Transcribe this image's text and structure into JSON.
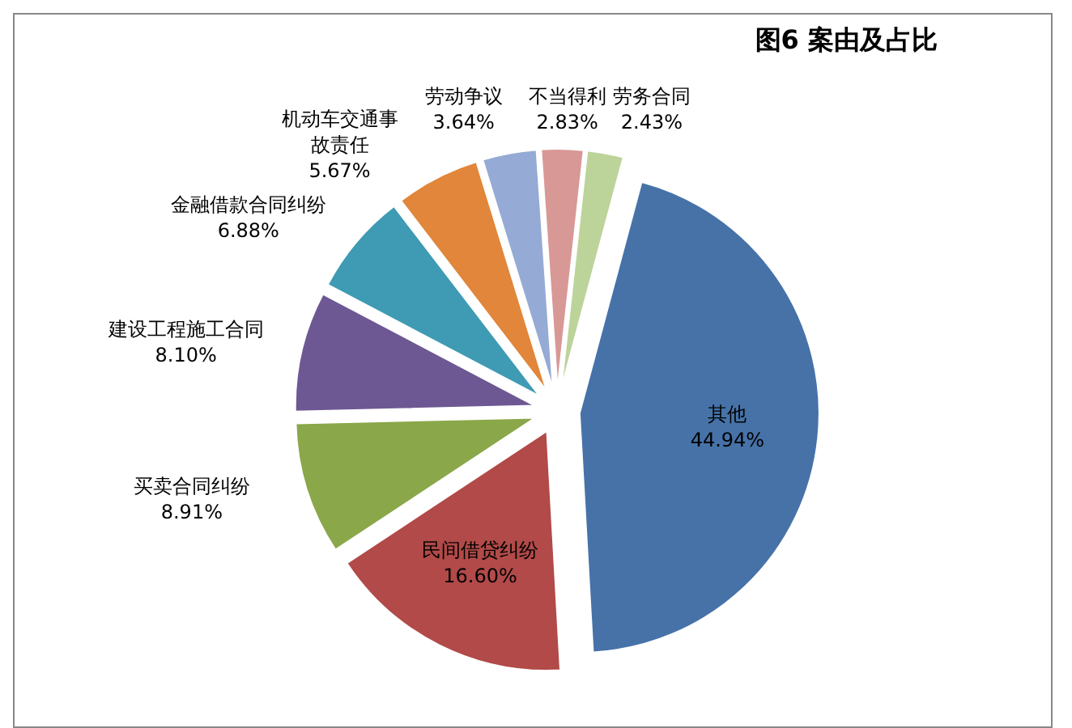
{
  "chart_data": {
    "type": "pie",
    "title": "图6 案由及占比",
    "categories": [
      "其他",
      "民间借贷纠纷",
      "买卖合同纠纷",
      "建设工程施工合同",
      "金融借款合同纠纷",
      "机动车交通事故责任",
      "劳动争议",
      "不当得利",
      "劳务合同"
    ],
    "values": [
      44.94,
      16.6,
      8.91,
      8.1,
      6.88,
      5.67,
      3.64,
      2.83,
      2.43
    ],
    "value_labels": [
      "44.94%",
      "16.60%",
      "8.91%",
      "8.10%",
      "6.88%",
      "5.67%",
      "3.64%",
      "2.83%",
      "2.43%"
    ],
    "colors": [
      "#4672a8",
      "#b14a48",
      "#8aa74a",
      "#6d5893",
      "#3e9bb3",
      "#e1863a",
      "#95aad4",
      "#d89896",
      "#bcd39a"
    ]
  }
}
